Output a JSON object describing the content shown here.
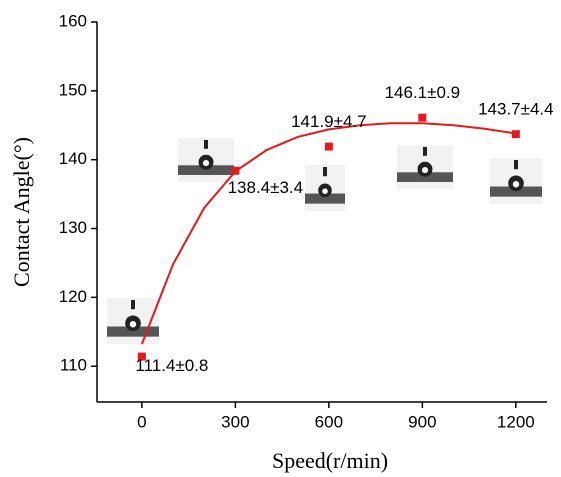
{
  "chart_data": {
    "type": "scatter",
    "x_label": "Speed(r/min)",
    "y_label": "Contact Angle(°)",
    "x": [
      0,
      300,
      600,
      900,
      1200
    ],
    "values": [
      111.4,
      138.4,
      141.9,
      146.1,
      143.7
    ],
    "value_labels": [
      "111.4±0.8",
      "138.4±3.4",
      "141.9±4.7",
      "146.1±0.9",
      "143.7±4.4"
    ],
    "color": "#e41a1c",
    "fit_line": {
      "color": "#e41a1c",
      "x": [
        0,
        100,
        200,
        300,
        400,
        500,
        600,
        700,
        800,
        900,
        1000,
        1100,
        1200
      ],
      "values": [
        113.2,
        124.8,
        133.0,
        138.3,
        141.4,
        143.3,
        144.4,
        145.0,
        145.3,
        145.3,
        145.0,
        144.5,
        143.8
      ]
    },
    "xlim": [
      -144,
      1300
    ],
    "ylim": [
      104.8,
      160
    ],
    "xticks": [
      0,
      300,
      600,
      900,
      1200
    ],
    "yticks": [
      110,
      120,
      130,
      140,
      150,
      160
    ]
  }
}
